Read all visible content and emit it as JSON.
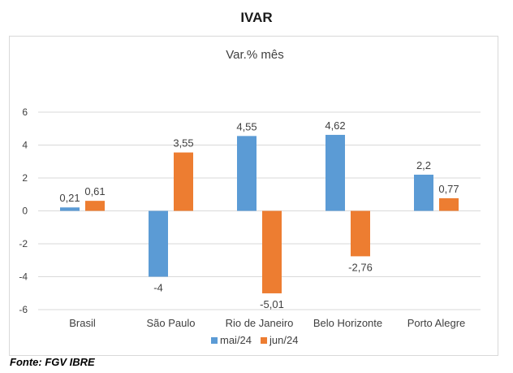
{
  "page": {
    "title": "IVAR",
    "source": "Fonte: FGV IBRE"
  },
  "chart_data": {
    "type": "bar",
    "title": "Var.% mês",
    "categories": [
      "Brasil",
      "São Paulo",
      "Rio de Janeiro",
      "Belo Horizonte",
      "Porto Alegre"
    ],
    "series": [
      {
        "name": "mai/24",
        "color": "#5b9bd5",
        "values": [
          0.21,
          -4,
          4.55,
          4.62,
          2.2
        ],
        "labels": [
          "0,21",
          "-4",
          "4,55",
          "4,62",
          "2,2"
        ]
      },
      {
        "name": "jun/24",
        "color": "#ed7d31",
        "values": [
          0.61,
          3.55,
          -5.01,
          -2.76,
          0.77
        ],
        "labels": [
          "0,61",
          "3,55",
          "-5,01",
          "-2,76",
          "0,77"
        ]
      }
    ],
    "ylim": [
      -6,
      6
    ],
    "yticks": [
      -6,
      -4,
      -2,
      0,
      2,
      4,
      6
    ],
    "grid": true,
    "legend": "bottom"
  }
}
